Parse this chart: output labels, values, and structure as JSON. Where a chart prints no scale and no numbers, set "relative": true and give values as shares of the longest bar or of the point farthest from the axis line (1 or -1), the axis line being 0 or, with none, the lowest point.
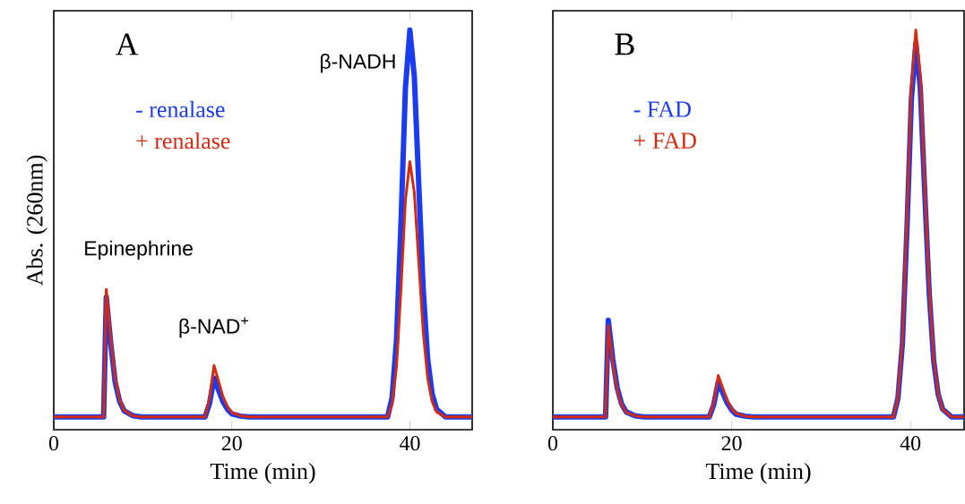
{
  "chart_data": [
    {
      "type": "line",
      "title": "A",
      "xlabel": "Time (min)",
      "ylabel": "Abs. (260nm)",
      "xlim": [
        0,
        47
      ],
      "xticks": [
        0,
        20,
        40
      ],
      "relative": true,
      "legend": "top left",
      "annotations": [
        {
          "text": "Epinephrine",
          "x": 5.9,
          "y": 0.33
        },
        {
          "text": "β-NAD$^{+}$",
          "x": 18.0,
          "y": 0.133
        },
        {
          "text": "β-NADH",
          "x": 40.0,
          "y": 1
        }
      ],
      "x": [
        0,
        5.6,
        5.9,
        6.4,
        6.9,
        7.4,
        7.9,
        8.9,
        9.9,
        17.0,
        17.5,
        18.0,
        18.5,
        19.0,
        19.5,
        20.0,
        21.0,
        22.0,
        37.5,
        38.0,
        38.5,
        39.0,
        39.5,
        40.0,
        40.5,
        41.0,
        41.5,
        42.0,
        42.5,
        43.0,
        44.0,
        47
      ],
      "series": [
        {
          "name": "-  renalase",
          "color": "#1a3cf0",
          "values": [
            0,
            0,
            0.31,
            0.19,
            0.09,
            0.04,
            0.016,
            0.003,
            0,
            0,
            0.035,
            0.1,
            0.07,
            0.04,
            0.02,
            0.008,
            0.002,
            0,
            0,
            0.05,
            0.2,
            0.5,
            0.85,
            1,
            0.88,
            0.6,
            0.33,
            0.15,
            0.06,
            0.02,
            0,
            0
          ]
        },
        {
          "name": "+ renalase",
          "color": "#d62a10",
          "values": [
            0,
            0,
            0.33,
            0.2,
            0.1,
            0.043,
            0.017,
            0.003,
            0,
            0,
            0.047,
            0.133,
            0.093,
            0.053,
            0.027,
            0.011,
            0.003,
            0,
            0,
            0.033,
            0.13,
            0.33,
            0.56,
            0.66,
            0.58,
            0.4,
            0.22,
            0.1,
            0.04,
            0.013,
            0,
            0
          ]
        }
      ]
    },
    {
      "type": "line",
      "title": "B",
      "xlabel": "Time (min)",
      "xlim": [
        0,
        46
      ],
      "xticks": [
        0,
        20,
        40
      ],
      "relative": true,
      "legend": "top left",
      "x": [
        0,
        5.9,
        6.2,
        6.7,
        7.2,
        7.7,
        8.2,
        9.2,
        10.2,
        17.5,
        18.0,
        18.5,
        19.0,
        19.5,
        20.0,
        20.5,
        21.5,
        22.5,
        38.1,
        38.6,
        39.1,
        39.6,
        40.1,
        40.6,
        41.1,
        41.6,
        42.1,
        42.6,
        43.1,
        43.6,
        44.6,
        46
      ],
      "series": [
        {
          "name": "-  FAD",
          "color": "#1a3cf0",
          "values": [
            0,
            0,
            0.25,
            0.15,
            0.075,
            0.033,
            0.013,
            0.003,
            0,
            0,
            0.032,
            0.09,
            0.063,
            0.036,
            0.018,
            0.007,
            0.002,
            0,
            0,
            0.048,
            0.19,
            0.48,
            0.82,
            0.965,
            0.85,
            0.58,
            0.32,
            0.145,
            0.058,
            0.02,
            0,
            0
          ]
        },
        {
          "name": "+ FAD",
          "color": "#d62a10",
          "values": [
            0,
            0,
            0.236,
            0.14,
            0.07,
            0.031,
            0.012,
            0.003,
            0,
            0,
            0.037,
            0.107,
            0.075,
            0.043,
            0.021,
            0.009,
            0.002,
            0,
            0,
            0.05,
            0.2,
            0.5,
            0.85,
            1,
            0.88,
            0.6,
            0.33,
            0.15,
            0.06,
            0.02,
            0,
            0
          ]
        }
      ]
    }
  ]
}
